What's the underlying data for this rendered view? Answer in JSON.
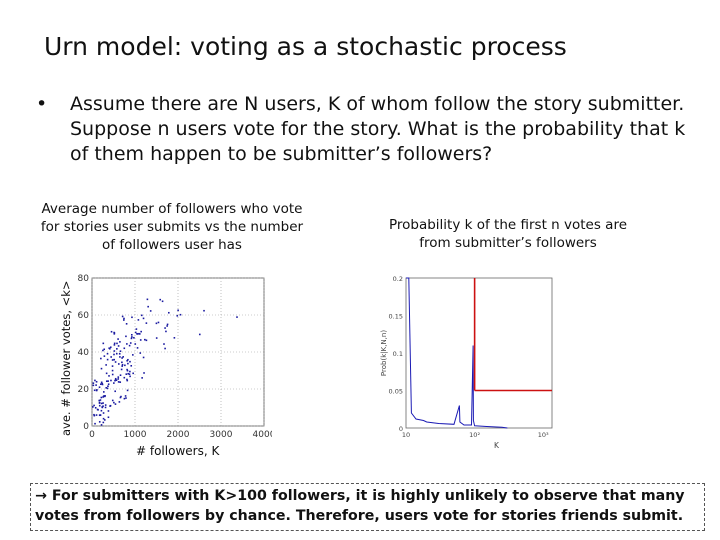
{
  "slide": {
    "title": "Urn model: voting as a stochastic process",
    "bullet_marker": "•",
    "bullet_text": "Assume there are N users, K of whom follow the story submitter. Suppose n users vote for the story. What is the probability that k of them happen to be submitter’s followers?",
    "left_caption": "Average number of followers who vote for stories user submits vs the number of followers user has",
    "right_caption": "Probability k of the first n votes are from submitter’s followers",
    "left_ylabel": "ave. # follower votes, <k>",
    "left_xlabel": "# followers, K",
    "note_arrow": "→",
    "note_text": "For submitters with K>100 followers, it is highly unlikely to observe that many votes from followers by chance. Therefore, users vote for stories friends submit.",
    "colors": {
      "points": "#1a1aa0",
      "curve": "#1a1ab4",
      "threshold": "#cc1111"
    }
  },
  "chart_data": [
    {
      "type": "scatter",
      "xlim": [
        0,
        4000
      ],
      "ylim": [
        0,
        80
      ],
      "xticks": [
        "0",
        "1000",
        "2000",
        "3000",
        "4000"
      ],
      "yticks": [
        "0",
        "20",
        "40",
        "60",
        "80"
      ],
      "grid": true,
      "clusters": [
        {
          "x_range": [
            0,
            400
          ],
          "y_range": [
            0,
            25
          ],
          "n": 45
        },
        {
          "x_range": [
            200,
            900
          ],
          "y_range": [
            10,
            45
          ],
          "n": 70
        },
        {
          "x_range": [
            400,
            1300
          ],
          "y_range": [
            25,
            60
          ],
          "n": 55
        },
        {
          "x_range": [
            900,
            2200
          ],
          "y_range": [
            40,
            70
          ],
          "n": 25
        },
        {
          "x_range": [
            1500,
            3900
          ],
          "y_range": [
            45,
            65
          ],
          "n": 6
        }
      ]
    },
    {
      "type": "line",
      "xscale": "log",
      "xlabel": "K",
      "ylabel": "Prob(k|K,N,n)",
      "xlim": [
        1,
        300
      ],
      "ylim": [
        0,
        0.2
      ],
      "xticks": [
        "10",
        "10²",
        "10³"
      ],
      "yticks": [
        "0",
        "0.05",
        "0.1",
        "0.15",
        "0.2"
      ],
      "series": [
        {
          "values": [
            [
              10,
              0.2
            ],
            [
              11,
              0.2
            ],
            [
              12,
              0.02
            ],
            [
              14,
              0.012
            ],
            [
              18,
              0.01
            ],
            [
              20,
              0.008
            ],
            [
              30,
              0.006
            ],
            [
              50,
              0.005
            ],
            [
              60,
              0.03
            ],
            [
              61,
              0.008
            ],
            [
              70,
              0.004
            ],
            [
              90,
              0.004
            ],
            [
              95,
              0.11
            ],
            [
              96,
              0.01
            ],
            [
              100,
              0.003
            ],
            [
              150,
              0.002
            ],
            [
              250,
              0.001
            ],
            [
              300,
              0.0
            ]
          ]
        }
      ],
      "threshold": {
        "x": 100,
        "y": 0.05
      }
    }
  ]
}
